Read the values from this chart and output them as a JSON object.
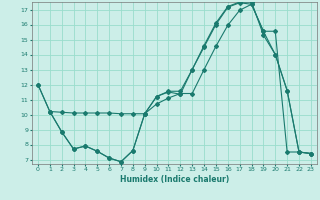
{
  "xlabel": "Humidex (Indice chaleur)",
  "background_color": "#cceee8",
  "grid_color": "#99ddcc",
  "line_color": "#1a7a6e",
  "xlim": [
    -0.5,
    23.5
  ],
  "ylim": [
    6.7,
    17.5
  ],
  "yticks": [
    7,
    8,
    9,
    10,
    11,
    12,
    13,
    14,
    15,
    16,
    17
  ],
  "xticks": [
    0,
    1,
    2,
    3,
    4,
    5,
    6,
    7,
    8,
    9,
    10,
    11,
    12,
    13,
    14,
    15,
    16,
    17,
    18,
    19,
    20,
    21,
    22,
    23
  ],
  "curve1_x": [
    0,
    1,
    2,
    3,
    4,
    5,
    6,
    7,
    8,
    9,
    10,
    11,
    12,
    13,
    14,
    15,
    16,
    17,
    18,
    19,
    20,
    21,
    22,
    23
  ],
  "curve1_y": [
    12.0,
    10.2,
    8.85,
    7.7,
    7.9,
    7.55,
    7.1,
    6.85,
    7.6,
    10.05,
    11.2,
    11.55,
    11.55,
    13.0,
    14.6,
    16.1,
    17.2,
    17.5,
    17.5,
    15.3,
    14.0,
    11.6,
    7.5,
    7.4
  ],
  "curve2_x": [
    0,
    1,
    2,
    3,
    4,
    5,
    6,
    7,
    8,
    9,
    10,
    11,
    12,
    13,
    14,
    15,
    16,
    17,
    18,
    19,
    20,
    21,
    22,
    23
  ],
  "curve2_y": [
    12.0,
    10.2,
    8.85,
    7.7,
    7.9,
    7.55,
    7.1,
    6.85,
    7.6,
    10.05,
    11.2,
    11.5,
    11.35,
    13.0,
    14.5,
    16.0,
    17.15,
    17.45,
    17.35,
    15.55,
    14.0,
    11.6,
    7.5,
    7.4
  ],
  "curve3_x": [
    1,
    2,
    3,
    4,
    5,
    6,
    7,
    8,
    9,
    10,
    11,
    12,
    13,
    14,
    15,
    16,
    17,
    18,
    19,
    20,
    21,
    22,
    23
  ],
  "curve3_y": [
    10.2,
    10.15,
    10.1,
    10.1,
    10.1,
    10.1,
    10.05,
    10.05,
    10.05,
    10.7,
    11.1,
    11.4,
    11.4,
    13.0,
    14.55,
    15.95,
    16.95,
    17.35,
    15.55,
    15.55,
    7.5,
    7.5,
    7.4
  ]
}
